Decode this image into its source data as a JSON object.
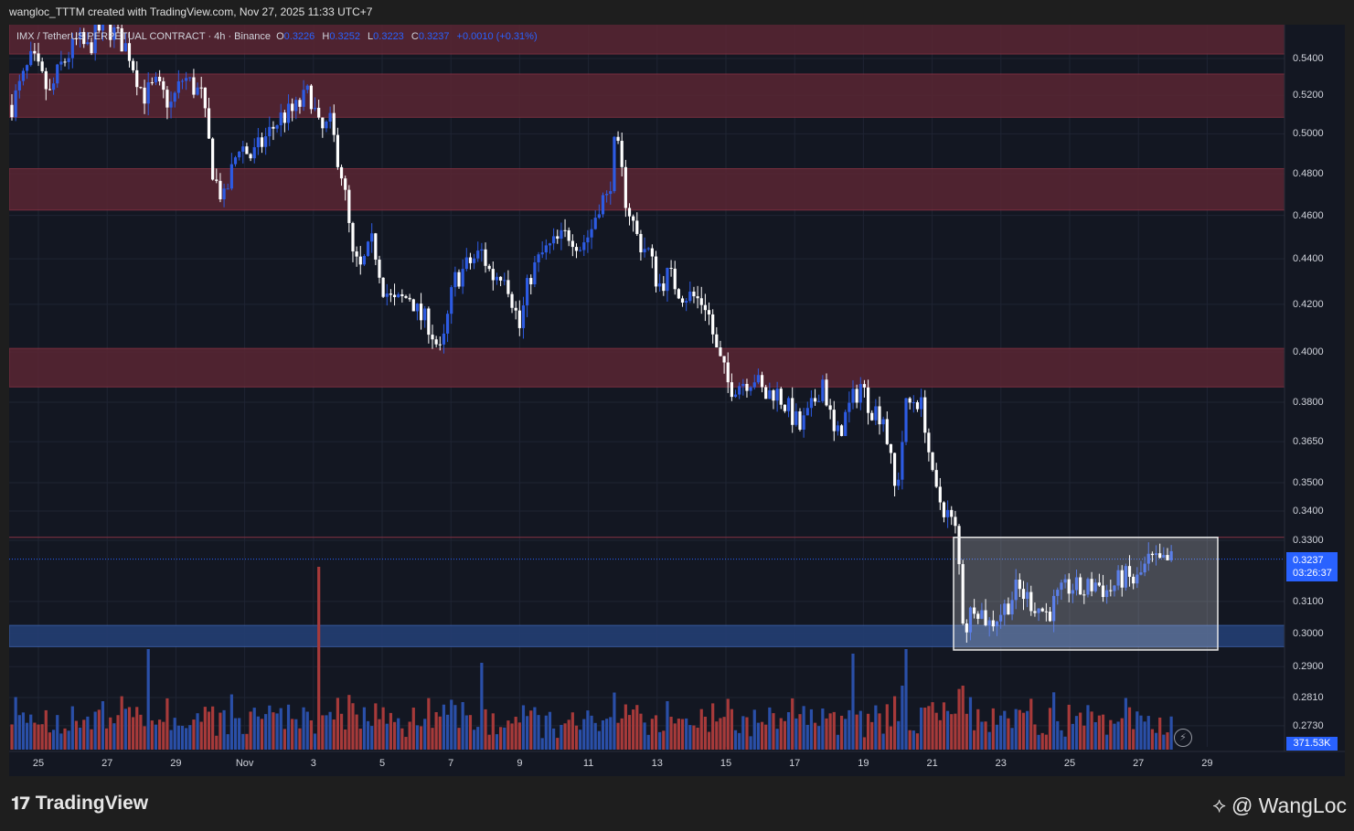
{
  "header": {
    "text": "wangloc_TTTM created with TradingView.com, Nov 27, 2025 11:33 UTC+7"
  },
  "legend": {
    "symbol": "IMX / TetherUS PERPETUAL CONTRACT · 4h · Binance",
    "o_label": "O",
    "o": "0.3226",
    "h_label": "H",
    "h": "0.3252",
    "l_label": "L",
    "l": "0.3223",
    "c_label": "C",
    "c": "0.3237",
    "change": "+0.0010 (+0.31%)"
  },
  "chart_data": {
    "type": "candlestick",
    "y_axis": {
      "scale": "log",
      "ticks": [
        "0.5400",
        "0.5200",
        "0.5000",
        "0.4800",
        "0.4600",
        "0.4400",
        "0.4200",
        "0.4000",
        "0.3800",
        "0.3650",
        "0.3500",
        "0.3400",
        "0.3300",
        "0.3100",
        "0.3000",
        "0.2900",
        "0.2810",
        "0.2730"
      ]
    },
    "x_axis": {
      "ticks": [
        "25",
        "27",
        "29",
        "Nov",
        "3",
        "5",
        "7",
        "9",
        "11",
        "13",
        "15",
        "17",
        "19",
        "21",
        "23",
        "25",
        "27",
        "29"
      ]
    },
    "last_price": "0.3237",
    "countdown": "03:26:37",
    "volume_last": "371.53K",
    "resistance_zones": [
      [
        0.5425,
        0.56
      ],
      [
        0.5085,
        0.5315
      ],
      [
        0.4625,
        0.4825
      ],
      [
        0.386,
        0.4015
      ]
    ],
    "support_zone": [
      0.296,
      0.3025
    ],
    "range_box": {
      "from": "Nov 21",
      "to": "Nov 27",
      "low": 0.295,
      "high": 0.331
    },
    "level_line": 0.331,
    "colors": {
      "up": "#2d5be3",
      "down": "#ffffff",
      "vol_up": "#2a4fa8",
      "vol_down": "#a73a3a",
      "zone": "#5a2633",
      "support": "#233e73",
      "accent": "#2962ff"
    },
    "path_anchors": [
      [
        0,
        0.515
      ],
      [
        16,
        0.54
      ],
      [
        30,
        0.52
      ],
      [
        38,
        0.535
      ],
      [
        52,
        0.55
      ],
      [
        60,
        0.545
      ],
      [
        72,
        0.56
      ],
      [
        80,
        0.555
      ],
      [
        92,
        0.545
      ],
      [
        104,
        0.52
      ],
      [
        114,
        0.525
      ],
      [
        126,
        0.515
      ],
      [
        136,
        0.53
      ],
      [
        150,
        0.52
      ],
      [
        160,
        0.478
      ],
      [
        168,
        0.467
      ],
      [
        180,
        0.495
      ],
      [
        190,
        0.488
      ],
      [
        200,
        0.497
      ],
      [
        212,
        0.508
      ],
      [
        224,
        0.512
      ],
      [
        236,
        0.522
      ],
      [
        244,
        0.5
      ],
      [
        252,
        0.505
      ],
      [
        262,
        0.478
      ],
      [
        270,
        0.44
      ],
      [
        276,
        0.435
      ],
      [
        286,
        0.448
      ],
      [
        294,
        0.428
      ],
      [
        302,
        0.42
      ],
      [
        316,
        0.424
      ],
      [
        322,
        0.415
      ],
      [
        330,
        0.412
      ],
      [
        340,
        0.398
      ],
      [
        350,
        0.43
      ],
      [
        362,
        0.438
      ],
      [
        372,
        0.443
      ],
      [
        380,
        0.432
      ],
      [
        390,
        0.435
      ],
      [
        402,
        0.41
      ],
      [
        410,
        0.432
      ],
      [
        420,
        0.442
      ],
      [
        428,
        0.446
      ],
      [
        442,
        0.452
      ],
      [
        450,
        0.446
      ],
      [
        458,
        0.452
      ],
      [
        466,
        0.468
      ],
      [
        472,
        0.467
      ],
      [
        478,
        0.498
      ],
      [
        486,
        0.468
      ],
      [
        496,
        0.448
      ],
      [
        504,
        0.443
      ],
      [
        512,
        0.428
      ],
      [
        520,
        0.433
      ],
      [
        530,
        0.425
      ],
      [
        540,
        0.423
      ],
      [
        550,
        0.42
      ],
      [
        558,
        0.4
      ],
      [
        568,
        0.386
      ],
      [
        578,
        0.388
      ],
      [
        588,
        0.39
      ],
      [
        596,
        0.382
      ],
      [
        604,
        0.385
      ],
      [
        614,
        0.378
      ],
      [
        624,
        0.37
      ],
      [
        632,
        0.376
      ],
      [
        642,
        0.389
      ],
      [
        652,
        0.365
      ],
      [
        662,
        0.377
      ],
      [
        672,
        0.387
      ],
      [
        680,
        0.378
      ],
      [
        690,
        0.375
      ],
      [
        700,
        0.345
      ],
      [
        708,
        0.378
      ],
      [
        716,
        0.382
      ],
      [
        722,
        0.376
      ],
      [
        730,
        0.347
      ],
      [
        740,
        0.34
      ],
      [
        748,
        0.332
      ],
      [
        754,
        0.3
      ],
      [
        762,
        0.31
      ],
      [
        774,
        0.303
      ],
      [
        786,
        0.308
      ],
      [
        796,
        0.314
      ],
      [
        810,
        0.309
      ],
      [
        820,
        0.306
      ],
      [
        828,
        0.311
      ],
      [
        838,
        0.315
      ],
      [
        848,
        0.313
      ],
      [
        858,
        0.316
      ],
      [
        868,
        0.313
      ],
      [
        880,
        0.318
      ],
      [
        890,
        0.316
      ],
      [
        900,
        0.323
      ],
      [
        910,
        0.322
      ],
      [
        920,
        0.3237
      ]
    ],
    "volume_spikes": {
      "Nov 5": 110,
      "Nov 8": 200,
      "Nov 11": 95,
      "Nov 20": 105,
      "Nov 21": 110
    }
  },
  "footer": {
    "brand": "TradingView",
    "handle": "@ WangLoc"
  }
}
